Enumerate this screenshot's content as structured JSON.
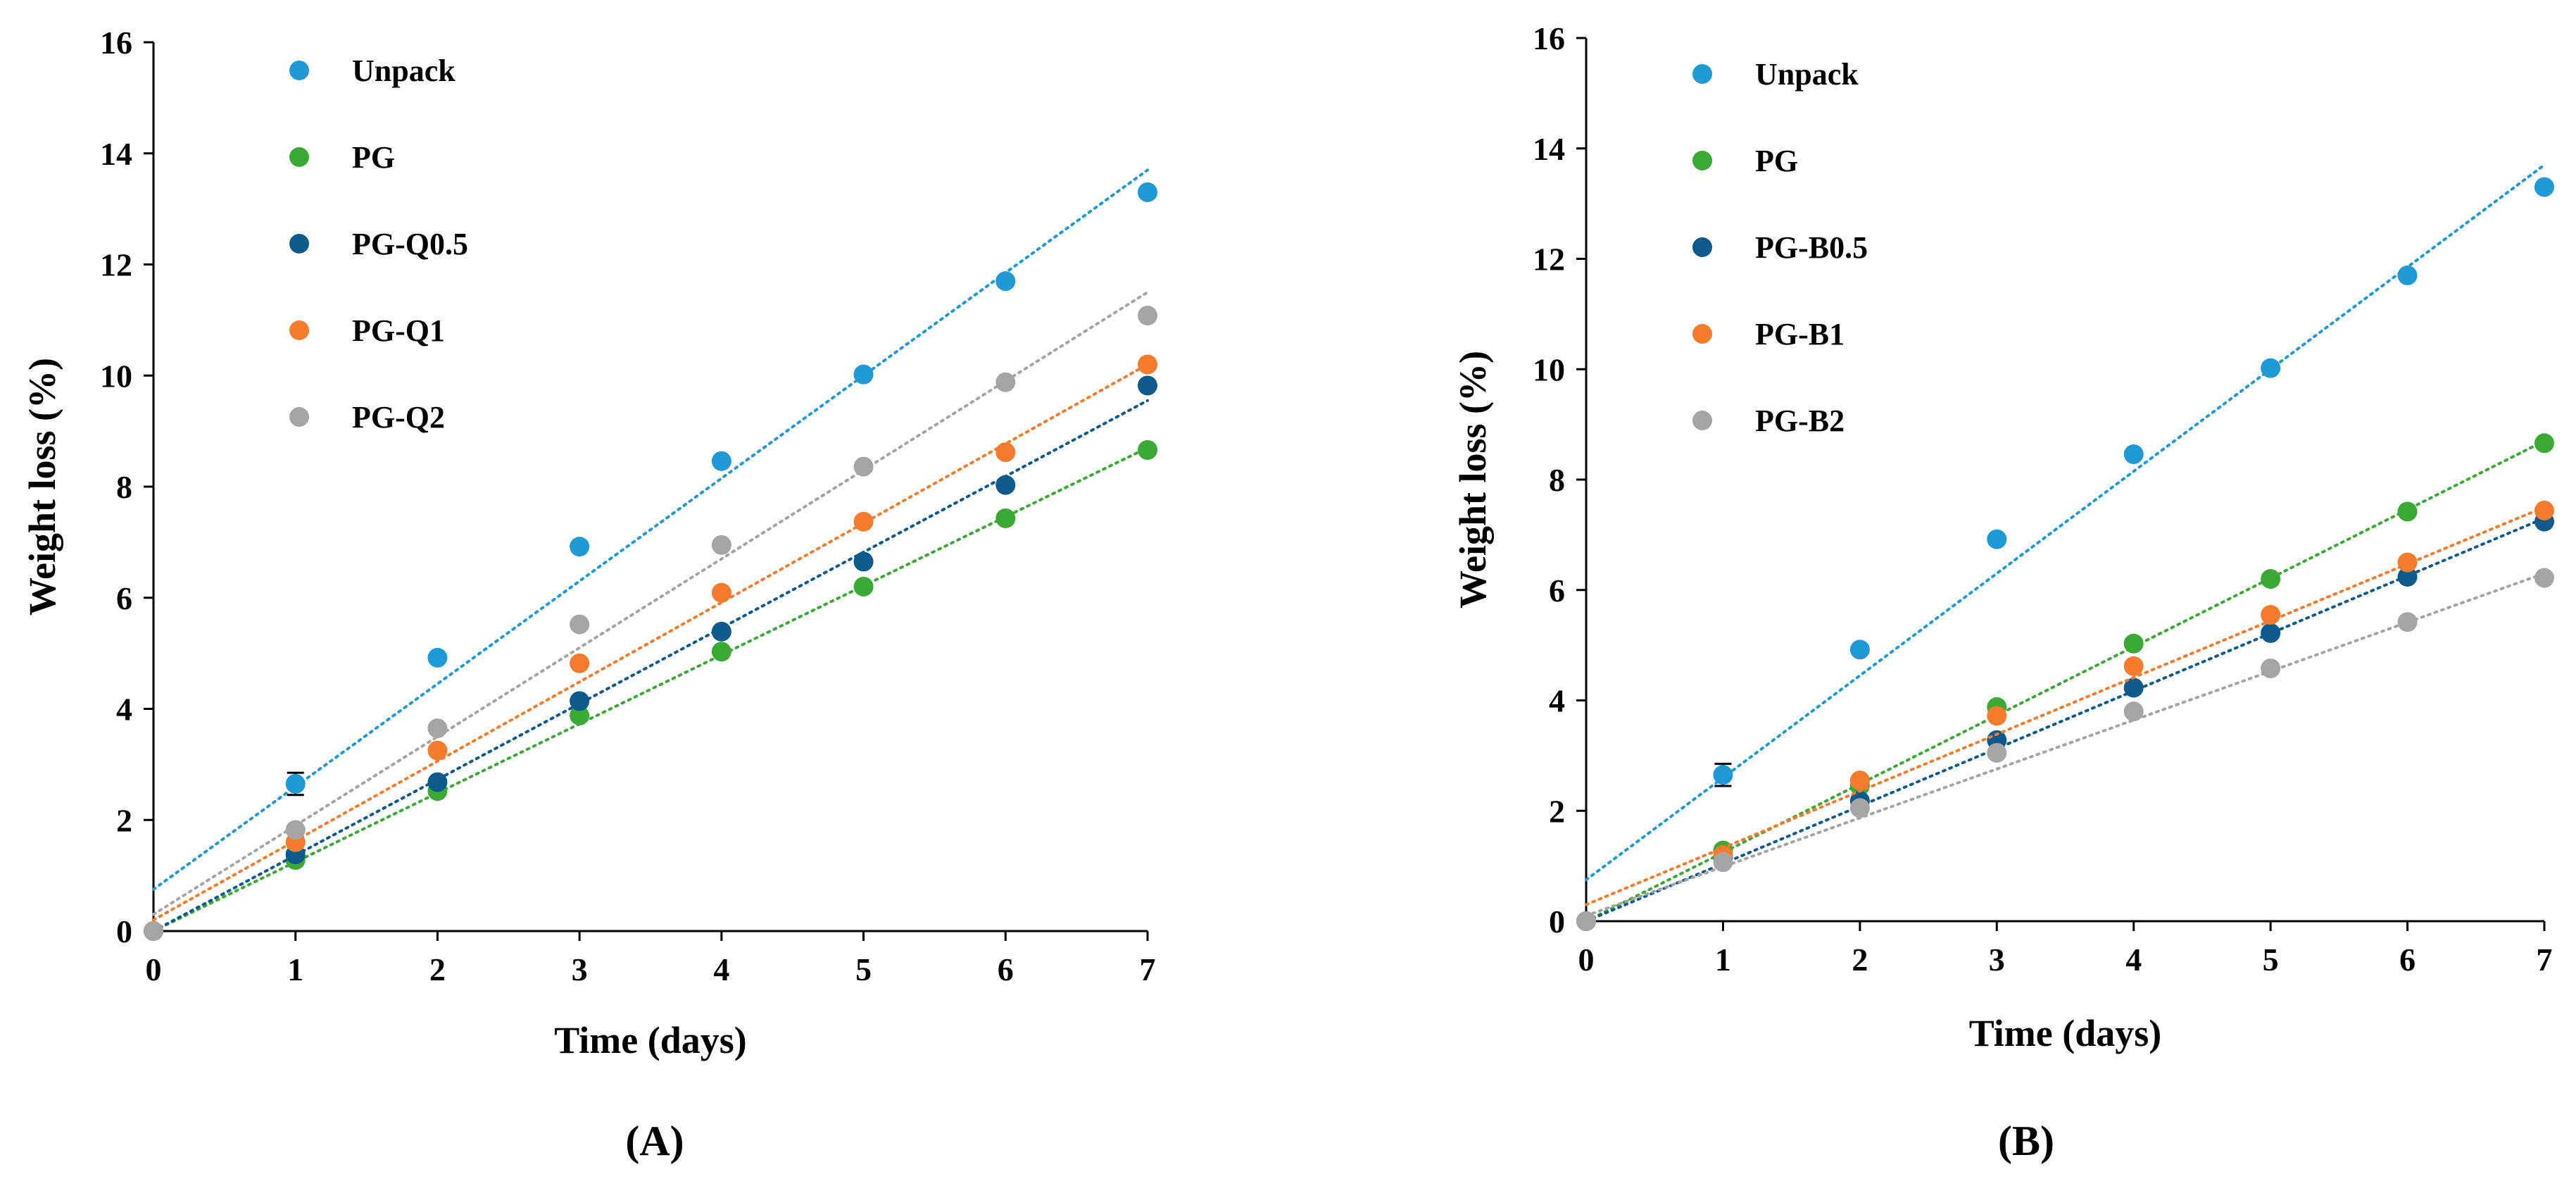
{
  "chart_data": [
    {
      "type": "scatter",
      "panel_label": "(A)",
      "xlabel": "Time (days)",
      "ylabel": "Weight loss (%)",
      "xlim": [
        0,
        7
      ],
      "ylim": [
        0,
        16
      ],
      "xticks": [
        0,
        1,
        2,
        3,
        4,
        5,
        6,
        7
      ],
      "yticks": [
        0,
        2,
        4,
        6,
        8,
        10,
        12,
        14,
        16
      ],
      "grid": false,
      "legend_position": "top-left",
      "series": [
        {
          "name": "Unpack",
          "color": "#1f9ad6",
          "x": [
            0,
            1,
            2,
            3,
            4,
            5,
            6,
            7
          ],
          "values": [
            0,
            2.65,
            4.92,
            6.92,
            8.46,
            10.02,
            11.7,
            13.3
          ],
          "error": [
            0,
            0.2,
            0,
            0,
            0,
            0,
            0,
            0
          ],
          "trend": [
            0.75,
            13.7
          ]
        },
        {
          "name": "PG",
          "color": "#3aaa35",
          "x": [
            0,
            1,
            2,
            3,
            4,
            5,
            6,
            7
          ],
          "values": [
            0,
            1.28,
            2.52,
            3.88,
            5.03,
            6.2,
            7.43,
            8.66
          ],
          "error": [
            0,
            0,
            0,
            0,
            0,
            0,
            0,
            0
          ],
          "trend": [
            0.0,
            8.7
          ]
        },
        {
          "name": "PG-Q0.5",
          "color": "#0d5a8c",
          "x": [
            0,
            1,
            2,
            3,
            4,
            5,
            6,
            7
          ],
          "values": [
            0,
            1.38,
            2.68,
            4.14,
            5.39,
            6.65,
            8.03,
            9.82
          ],
          "error": [
            0,
            0,
            0,
            0,
            0,
            0,
            0,
            0
          ],
          "trend": [
            0.0,
            9.55
          ]
        },
        {
          "name": "PG-Q1",
          "color": "#f47c2c",
          "x": [
            0,
            1,
            2,
            3,
            4,
            5,
            6,
            7
          ],
          "values": [
            0,
            1.6,
            3.25,
            4.82,
            6.09,
            7.37,
            8.62,
            10.2
          ],
          "error": [
            0,
            0,
            0,
            0,
            0,
            0,
            0,
            0
          ],
          "trend": [
            0.2,
            10.2
          ]
        },
        {
          "name": "PG-Q2",
          "color": "#a5a5a5",
          "x": [
            0,
            1,
            2,
            3,
            4,
            5,
            6,
            7
          ],
          "values": [
            0,
            1.82,
            3.65,
            5.52,
            6.95,
            8.36,
            9.88,
            11.08
          ],
          "error": [
            0,
            0,
            0,
            0,
            0,
            0,
            0,
            0
          ],
          "trend": [
            0.3,
            11.5
          ]
        }
      ]
    },
    {
      "type": "scatter",
      "panel_label": "(B)",
      "xlabel": "Time (days)",
      "ylabel": "Weight loss (%)",
      "xlim": [
        0,
        7
      ],
      "ylim": [
        0,
        16
      ],
      "xticks": [
        0,
        1,
        2,
        3,
        4,
        5,
        6,
        7
      ],
      "yticks": [
        0,
        2,
        4,
        6,
        8,
        10,
        12,
        14,
        16
      ],
      "grid": false,
      "legend_position": "top-left",
      "series": [
        {
          "name": "Unpack",
          "color": "#1f9ad6",
          "x": [
            0,
            1,
            2,
            3,
            4,
            5,
            6,
            7
          ],
          "values": [
            0,
            2.65,
            4.92,
            6.92,
            8.46,
            10.02,
            11.7,
            13.3
          ],
          "error": [
            0,
            0.2,
            0,
            0,
            0,
            0,
            0,
            0
          ],
          "trend": [
            0.75,
            13.7
          ]
        },
        {
          "name": "PG",
          "color": "#3aaa35",
          "x": [
            0,
            1,
            2,
            3,
            4,
            5,
            6,
            7
          ],
          "values": [
            0,
            1.28,
            2.45,
            3.88,
            5.03,
            6.2,
            7.42,
            8.66
          ],
          "error": [
            0,
            0,
            0,
            0,
            0,
            0,
            0,
            0
          ],
          "trend": [
            0.0,
            8.7
          ]
        },
        {
          "name": "PG-B0.5",
          "color": "#0d5a8c",
          "x": [
            0,
            1,
            2,
            3,
            4,
            5,
            6,
            7
          ],
          "values": [
            0,
            1.15,
            2.18,
            3.28,
            4.23,
            5.22,
            6.24,
            7.24
          ],
          "error": [
            0,
            0,
            0,
            0,
            0,
            0,
            0,
            0
          ],
          "trend": [
            0.0,
            7.3
          ]
        },
        {
          "name": "PG-B1",
          "color": "#f47c2c",
          "x": [
            0,
            1,
            2,
            3,
            4,
            5,
            6,
            7
          ],
          "values": [
            0,
            1.2,
            2.55,
            3.72,
            4.62,
            5.55,
            6.5,
            7.44
          ],
          "error": [
            0,
            0,
            0,
            0,
            0,
            0,
            0,
            0
          ],
          "trend": [
            0.3,
            7.5
          ]
        },
        {
          "name": "PG-B2",
          "color": "#a5a5a5",
          "x": [
            0,
            1,
            2,
            3,
            4,
            5,
            6,
            7
          ],
          "values": [
            0,
            1.07,
            2.05,
            3.05,
            3.8,
            4.58,
            5.42,
            6.22
          ],
          "error": [
            0,
            0,
            0,
            0,
            0,
            0,
            0,
            0
          ],
          "trend": [
            0.1,
            6.3
          ]
        }
      ]
    }
  ]
}
